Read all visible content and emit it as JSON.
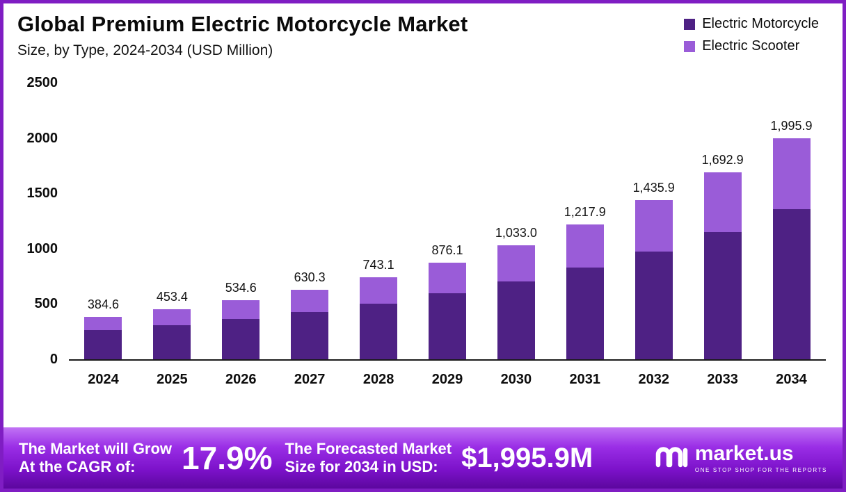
{
  "header": {
    "title": "Global Premium Electric Motorcycle Market",
    "subtitle": "Size, by Type, 2024-2034 (USD Million)"
  },
  "legend": [
    {
      "label": "Electric Motorcycle",
      "color": "#4e2184"
    },
    {
      "label": "Electric Scooter",
      "color": "#9a5cd8"
    }
  ],
  "chart_data": {
    "type": "bar",
    "stacked": true,
    "title": "Global Premium Electric Motorcycle Market Size, by Type, 2024-2034 (USD Million)",
    "categories": [
      "2024",
      "2025",
      "2026",
      "2027",
      "2028",
      "2029",
      "2030",
      "2031",
      "2032",
      "2033",
      "2034"
    ],
    "series": [
      {
        "name": "Electric Motorcycle",
        "color": "#4e2184",
        "values": [
          261.5,
          308.3,
          363.5,
          428.6,
          505.3,
          595.7,
          702.4,
          828.2,
          976.4,
          1151.2,
          1357.2
        ]
      },
      {
        "name": "Electric Scooter",
        "color": "#9a5cd8",
        "values": [
          123.1,
          145.1,
          171.1,
          201.7,
          237.8,
          280.4,
          330.6,
          389.7,
          459.5,
          541.7,
          638.7
        ]
      }
    ],
    "totals": [
      384.6,
      453.4,
      534.6,
      630.3,
      743.1,
      876.1,
      1033.0,
      1217.9,
      1435.9,
      1692.9,
      1995.9
    ],
    "total_labels": [
      "384.6",
      "453.4",
      "534.6",
      "630.3",
      "743.1",
      "876.1",
      "1,033.0",
      "1,217.9",
      "1,435.9",
      "1,692.9",
      "1,995.9"
    ],
    "xlabel": "",
    "ylabel": "",
    "ylim": [
      0,
      2500
    ],
    "yticks": [
      0,
      500,
      1000,
      1500,
      2000,
      2500
    ],
    "grid": false,
    "legend_position": "top-right"
  },
  "footer": {
    "cagr_line1": "The Market will Grow",
    "cagr_line2": "At the CAGR of:",
    "cagr_value": "17.9%",
    "forecast_line1": "The Forecasted Market",
    "forecast_line2": "Size for 2034 in USD:",
    "forecast_value": "$1,995.9M",
    "brand": "market.us",
    "brand_tagline": "ONE STOP SHOP FOR THE REPORTS",
    "icons": {
      "brand": "marketus-m-icon"
    }
  },
  "colors": {
    "frame_border": "#7f1dc3",
    "motorcycle": "#4e2184",
    "scooter": "#9a5cd8",
    "footer_gradient_top": "#c173f5",
    "footer_gradient_bottom": "#5c079e"
  }
}
